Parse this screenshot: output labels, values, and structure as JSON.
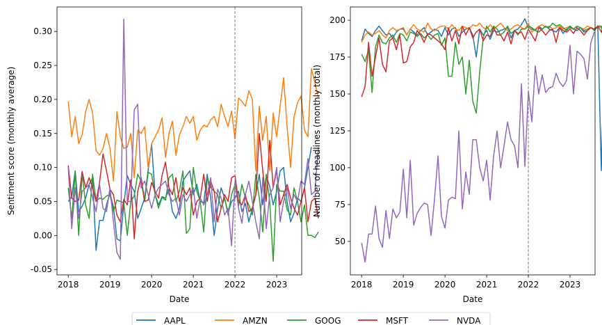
{
  "colors": {
    "AAPL": "#1f77b4",
    "AMZN": "#ff7f0e",
    "GOOG": "#2ca02c",
    "MSFT": "#d62728",
    "NVDA": "#9467bd",
    "event_line": "#808080"
  },
  "chart_data": [
    {
      "type": "line",
      "xlabel": "Date",
      "ylabel": "Sentiment score (monthly average)",
      "x_ticks": [
        "2018",
        "2019",
        "2020",
        "2021",
        "2022",
        "2023"
      ],
      "y_ticks": [
        "-0.05",
        "0.00",
        "0.05",
        "0.10",
        "0.15",
        "0.20",
        "0.25",
        "0.30"
      ],
      "xlim": [
        2017.73,
        2023.6
      ],
      "ylim": [
        -0.058,
        0.336
      ],
      "event_line_x": 2022.0,
      "grid": false,
      "x_step": 0.0833333,
      "x_start": 2018.0,
      "series": [
        {
          "name": "AAPL",
          "values": [
            0.05,
            0.057,
            0.095,
            0.035,
            0.043,
            0.055,
            0.075,
            0.085,
            -0.022,
            0.022,
            0.022,
            0.045,
            0.062,
            0.042,
            -0.005,
            -0.008,
            0.045,
            0.088,
            0.075,
            0.065,
            0.025,
            0.04,
            0.055,
            0.096,
            0.134,
            0.06,
            0.045,
            0.057,
            0.055,
            0.068,
            0.035,
            0.025,
            0.04,
            0.08,
            0.088,
            0.095,
            0.06,
            0.075,
            0.05,
            0.048,
            0.09,
            0.055,
            0.0,
            0.04,
            0.07,
            0.055,
            0.033,
            0.05,
            0.055,
            0.065,
            0.035,
            0.047,
            0.02,
            0.04,
            0.06,
            0.09,
            0.045,
            0.088,
            0.072,
            0.045,
            0.065,
            0.095,
            0.1,
            0.05,
            0.02,
            0.033,
            0.055,
            0.05,
            0.07,
            0.1,
            0.13
          ]
        },
        {
          "name": "AMZN",
          "values": [
            0.197,
            0.145,
            0.175,
            0.135,
            0.148,
            0.182,
            0.2,
            0.18,
            0.125,
            0.118,
            0.128,
            0.15,
            0.128,
            0.08,
            0.182,
            0.145,
            0.128,
            0.13,
            0.15,
            0.085,
            0.155,
            0.15,
            0.16,
            0.1,
            0.135,
            0.145,
            0.155,
            0.173,
            0.115,
            0.15,
            0.168,
            0.118,
            0.148,
            0.16,
            0.175,
            0.165,
            0.175,
            0.14,
            0.155,
            0.162,
            0.16,
            0.17,
            0.175,
            0.16,
            0.193,
            0.175,
            0.16,
            0.183,
            0.142,
            0.202,
            0.197,
            0.19,
            0.213,
            0.2,
            0.095,
            0.19,
            0.14,
            0.175,
            0.095,
            0.18,
            0.145,
            0.19,
            0.232,
            0.16,
            0.1,
            0.175,
            0.195,
            0.205,
            0.155,
            0.145,
            0.245,
            0.225,
            0.203
          ]
        },
        {
          "name": "GOOG",
          "values": [
            0.07,
            0.025,
            0.093,
            0.0,
            0.092,
            0.045,
            0.025,
            0.09,
            0.05,
            0.055,
            0.053,
            0.058,
            0.06,
            0.035,
            0.052,
            0.05,
            0.048,
            0.0,
            0.05,
            0.058,
            0.09,
            0.08,
            0.05,
            0.093,
            0.09,
            0.06,
            0.04,
            0.056,
            0.052,
            0.085,
            0.09,
            0.05,
            0.065,
            0.095,
            0.003,
            0.01,
            0.1,
            0.065,
            0.05,
            0.005,
            0.085,
            0.07,
            0.065,
            0.06,
            0.04,
            0.055,
            0.03,
            0.06,
            0.075,
            0.043,
            0.075,
            0.055,
            0.045,
            0.03,
            0.09,
            0.055,
            0.005,
            0.09,
            0.05,
            -0.038,
            0.075,
            0.065,
            0.065,
            0.038,
            0.03,
            0.07,
            0.05,
            0.02,
            0.045,
            0.0,
            0.0,
            -0.003,
            0.005
          ]
        },
        {
          "name": "MSFT",
          "values": [
            0.103,
            0.055,
            0.05,
            0.052,
            0.094,
            0.07,
            0.085,
            0.07,
            0.05,
            0.078,
            0.12,
            0.095,
            0.068,
            0.06,
            0.03,
            0.02,
            0.053,
            0.045,
            0.082,
            -0.005,
            0.065,
            0.085,
            0.05,
            0.052,
            0.078,
            0.065,
            0.055,
            0.088,
            0.108,
            0.07,
            0.06,
            0.085,
            0.05,
            0.07,
            0.06,
            0.07,
            0.03,
            0.05,
            0.055,
            0.09,
            0.05,
            0.08,
            0.065,
            0.02,
            0.04,
            0.06,
            0.05,
            0.085,
            0.088,
            0.05,
            0.045,
            0.06,
            0.035,
            0.04,
            0.06,
            0.15,
            0.095,
            0.05,
            0.14,
            0.07,
            0.095,
            0.045,
            0.06,
            0.075,
            0.055,
            0.04,
            0.03,
            0.05,
            0.07,
            0.02,
            0.05,
            0.055,
            0.025
          ]
        },
        {
          "name": "NVDA",
          "values": [
            0.1,
            0.01,
            0.07,
            0.025,
            0.065,
            0.07,
            0.075,
            0.055,
            0.035,
            0.075,
            0.04,
            0.035,
            0.07,
            0.02,
            -0.025,
            -0.035,
            0.318,
            0.05,
            0.05,
            0.185,
            0.193,
            0.07,
            0.08,
            0.06,
            0.04,
            0.06,
            0.07,
            0.075,
            0.08,
            0.06,
            0.05,
            0.055,
            0.03,
            0.06,
            0.05,
            0.06,
            0.07,
            0.025,
            0.055,
            0.045,
            0.06,
            0.085,
            0.02,
            0.068,
            0.055,
            0.03,
            0.04,
            -0.015,
            0.08,
            0.04,
            0.018,
            0.06,
            0.08,
            0.05,
            0.02,
            -0.005,
            0.085,
            0.01,
            0.06,
            0.07,
            0.1,
            0.02,
            0.05,
            0.07,
            0.04,
            0.06,
            0.05,
            0.08,
            0.075,
            0.113,
            0.06,
            0.065,
            0.13
          ]
        }
      ]
    },
    {
      "type": "line",
      "xlabel": "Date",
      "ylabel": "Number of headlines (monthly total)",
      "x_ticks": [
        "2018",
        "2019",
        "2020",
        "2021",
        "2022",
        "2023"
      ],
      "y_ticks": [
        "50",
        "75",
        "100",
        "125",
        "150",
        "175",
        "200"
      ],
      "xlim": [
        2017.73,
        2023.6
      ],
      "ylim": [
        27.3,
        209.0
      ],
      "event_line_x": 2022.0,
      "grid": false,
      "x_step": 0.0833333,
      "x_start": 2018.0,
      "series": [
        {
          "name": "AAPL",
          "values": [
            186,
            194,
            191,
            189,
            193,
            196,
            193,
            190,
            191,
            188,
            192,
            194,
            194,
            190,
            194,
            192,
            190,
            193,
            195,
            190,
            192,
            194,
            193,
            189,
            195,
            190,
            194,
            195,
            189,
            192,
            194,
            195,
            190,
            175,
            194,
            190,
            193,
            187,
            193,
            192,
            193,
            194,
            195,
            188,
            193,
            194,
            197,
            201,
            195,
            194,
            193,
            196,
            194,
            196,
            194,
            193,
            192,
            195,
            191,
            194,
            195,
            194,
            193,
            195,
            192,
            193,
            195,
            194,
            195,
            98,
            193,
            190,
            201
          ]
        },
        {
          "name": "AMZN",
          "values": [
            185,
            190,
            192,
            190,
            191,
            193,
            190,
            188,
            193,
            195,
            193,
            194,
            195,
            190,
            194,
            197,
            194,
            193,
            192,
            198,
            194,
            193,
            195,
            196,
            196,
            194,
            197,
            194,
            193,
            196,
            195,
            194,
            197,
            196,
            198,
            195,
            194,
            197,
            194,
            196,
            198,
            195,
            193,
            194,
            196,
            197,
            195,
            194,
            198,
            192,
            194,
            196,
            197,
            195,
            196,
            194,
            195,
            196,
            194,
            195,
            196,
            194,
            196,
            195,
            194,
            196,
            195,
            194,
            196,
            195,
            197,
            195,
            196
          ]
        },
        {
          "name": "GOOG",
          "values": [
            177,
            172,
            180,
            151,
            182,
            190,
            185,
            184,
            188,
            190,
            185,
            191,
            190,
            186,
            192,
            191,
            189,
            191,
            188,
            190,
            187,
            190,
            191,
            183,
            188,
            162,
            162,
            185,
            170,
            175,
            150,
            173,
            145,
            137,
            165,
            188,
            196,
            192,
            196,
            194,
            190,
            192,
            196,
            191,
            193,
            190,
            194,
            194,
            196,
            195,
            193,
            192,
            194,
            196,
            195,
            198,
            196,
            197,
            195,
            193,
            196,
            194,
            196,
            195,
            193,
            194,
            195,
            193,
            196,
            196,
            177,
            188,
            194
          ]
        },
        {
          "name": "MSFT",
          "values": [
            148,
            155,
            185,
            162,
            175,
            188,
            170,
            165,
            186,
            188,
            180,
            190,
            171,
            172,
            182,
            185,
            193,
            190,
            185,
            191,
            190,
            188,
            186,
            184,
            180,
            195,
            186,
            193,
            184,
            196,
            190,
            195,
            188,
            192,
            194,
            186,
            190,
            189,
            195,
            190,
            190,
            186,
            192,
            184,
            193,
            191,
            192,
            187,
            194,
            190,
            186,
            195,
            193,
            190,
            193,
            194,
            185,
            195,
            193,
            192,
            194,
            191,
            195,
            193,
            190,
            193,
            195,
            194,
            196,
            192,
            198,
            188,
            197
          ]
        },
        {
          "name": "NVDA",
          "values": [
            49,
            36,
            55,
            55,
            74,
            52,
            46,
            71,
            52,
            72,
            66,
            70,
            99,
            66,
            105,
            61,
            69,
            73,
            76,
            75,
            54,
            79,
            108,
            67,
            59,
            78,
            80,
            79,
            125,
            72,
            97,
            82,
            119,
            119,
            100,
            91,
            105,
            78,
            108,
            125,
            100,
            115,
            131,
            119,
            115,
            100,
            157,
            101,
            152,
            131,
            169,
            150,
            163,
            151,
            154,
            155,
            164,
            158,
            155,
            159,
            183,
            150,
            179,
            177,
            174,
            160,
            185,
            192
          ]
        }
      ]
    }
  ],
  "legend": {
    "placement": "bottom-center",
    "entries": [
      "AAPL",
      "AMZN",
      "GOOG",
      "MSFT",
      "NVDA"
    ]
  }
}
